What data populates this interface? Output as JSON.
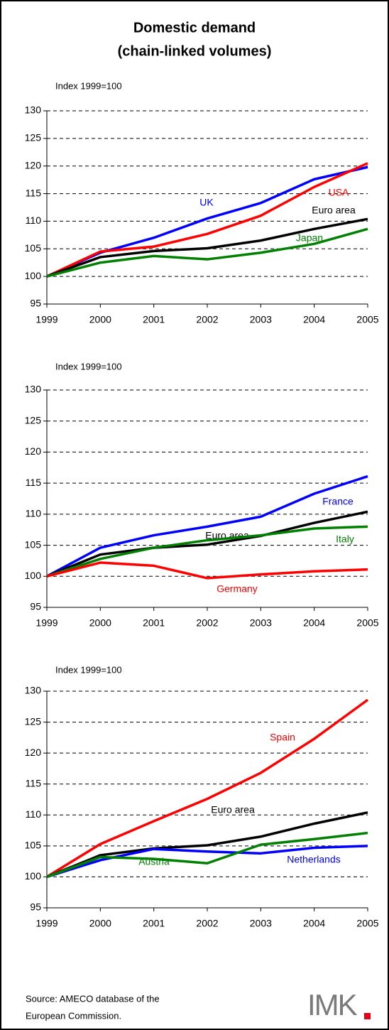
{
  "title": [
    "Domestic demand",
    "(chain-linked volumes)"
  ],
  "source": [
    "Source: AMECO database of the",
    "European Commission."
  ],
  "logo": "IMK",
  "chart_data": [
    {
      "type": "line",
      "y_label": "Index 1999=100",
      "x": [
        1999,
        2000,
        2001,
        2002,
        2003,
        2004,
        2005
      ],
      "xlim": [
        1999,
        2005
      ],
      "xticks": [
        1999,
        2000,
        2001,
        2002,
        2003,
        2004,
        2005
      ],
      "ylim": [
        95,
        130
      ],
      "yticks": [
        95,
        100,
        105,
        110,
        115,
        120,
        125,
        130
      ],
      "grid": true,
      "series": [
        {
          "name": "UK",
          "color": "#0000ff",
          "values": [
            100,
            104.3,
            107,
            110.5,
            113.3,
            117.6,
            119.8
          ]
        },
        {
          "name": "USA",
          "color": "#ff0000",
          "values": [
            100,
            104.5,
            105.4,
            107.7,
            111,
            116.2,
            120.5
          ]
        },
        {
          "name": "Euro area",
          "color": "#000000",
          "values": [
            100,
            103.5,
            104.6,
            105.1,
            106.5,
            108.6,
            110.4
          ]
        },
        {
          "name": "Japan",
          "color": "#008000",
          "values": [
            100,
            102.5,
            103.7,
            103.1,
            104.3,
            105.9,
            108.6
          ]
        }
      ]
    },
    {
      "type": "line",
      "y_label": "Index 1999=100",
      "x": [
        1999,
        2000,
        2001,
        2002,
        2003,
        2004,
        2005
      ],
      "xlim": [
        1999,
        2005
      ],
      "xticks": [
        1999,
        2000,
        2001,
        2002,
        2003,
        2004,
        2005
      ],
      "ylim": [
        95,
        130
      ],
      "yticks": [
        95,
        100,
        105,
        110,
        115,
        120,
        125,
        130
      ],
      "grid": true,
      "series": [
        {
          "name": "France",
          "color": "#0000ff",
          "values": [
            100,
            104.6,
            106.6,
            108,
            109.6,
            113.3,
            116.1
          ]
        },
        {
          "name": "Euro area",
          "color": "#000000",
          "values": [
            100,
            103.5,
            104.6,
            105.1,
            106.5,
            108.6,
            110.4
          ]
        },
        {
          "name": "Italy",
          "color": "#008000",
          "values": [
            100,
            102.8,
            104.6,
            105.8,
            106.6,
            107.7,
            108
          ]
        },
        {
          "name": "Germany",
          "color": "#ff0000",
          "values": [
            100,
            102.2,
            101.7,
            99.7,
            100.3,
            100.8,
            101.1
          ]
        }
      ]
    },
    {
      "type": "line",
      "y_label": "Index 1999=100",
      "x": [
        1999,
        2000,
        2001,
        2002,
        2003,
        2004,
        2005
      ],
      "xlim": [
        1999,
        2005
      ],
      "xticks": [
        1999,
        2000,
        2001,
        2002,
        2003,
        2004,
        2005
      ],
      "ylim": [
        95,
        130
      ],
      "yticks": [
        95,
        100,
        105,
        110,
        115,
        120,
        125,
        130
      ],
      "grid": true,
      "series": [
        {
          "name": "Spain",
          "color": "#ff0000",
          "values": [
            100,
            105.3,
            109,
            112.6,
            116.8,
            122.3,
            128.6
          ]
        },
        {
          "name": "Euro area",
          "color": "#000000",
          "values": [
            100,
            103.5,
            104.6,
            105.1,
            106.5,
            108.6,
            110.4
          ]
        },
        {
          "name": "Netherlands",
          "color": "#0000ff",
          "values": [
            100,
            102.7,
            104.5,
            104.1,
            103.8,
            104.7,
            105
          ]
        },
        {
          "name": "Austria",
          "color": "#008000",
          "values": [
            100,
            103.2,
            102.9,
            102.2,
            105.2,
            106.1,
            107.1
          ]
        }
      ]
    }
  ]
}
